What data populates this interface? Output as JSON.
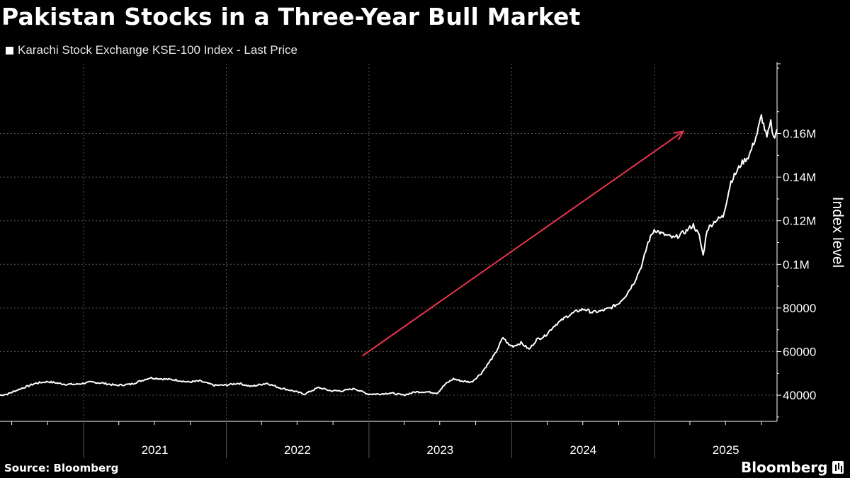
{
  "header": {
    "title": "Pakistan Stocks in a Three-Year Bull Market"
  },
  "footer": {
    "source": "Source: Bloomberg",
    "brand": "Bloomberg"
  },
  "colors": {
    "background": "#000000",
    "series": "#ffffff",
    "arrow": "#e8334a",
    "grid": "#555555"
  },
  "chart_data": {
    "type": "line",
    "ylabel": "Index level",
    "yaxis_side": "right",
    "grid": true,
    "legend_position": "top-left",
    "xlim": [
      "2020-06-01",
      "2025-11-10"
    ],
    "ylim": [
      28000,
      192000
    ],
    "x_ticks": [
      "2021",
      "2022",
      "2023",
      "2024",
      "2025"
    ],
    "y_ticks": [
      {
        "value": 40000,
        "label": "40000"
      },
      {
        "value": 60000,
        "label": "60000"
      },
      {
        "value": 80000,
        "label": "80000"
      },
      {
        "value": 100000,
        "label": "0.1M"
      },
      {
        "value": 120000,
        "label": "0.12M"
      },
      {
        "value": 140000,
        "label": "0.14M"
      },
      {
        "value": 160000,
        "label": "0.16M"
      }
    ],
    "series": [
      {
        "name": "Karachi Stock Exchange KSE-100 Index - Last Price",
        "color": "#ffffff",
        "points": [
          [
            "2020-06-01",
            40000
          ],
          [
            "2020-06-20",
            40500
          ],
          [
            "2020-07-10",
            42000
          ],
          [
            "2020-08-01",
            43500
          ],
          [
            "2020-09-01",
            45500
          ],
          [
            "2020-10-01",
            46200
          ],
          [
            "2020-11-15",
            45000
          ],
          [
            "2020-12-15",
            45000
          ],
          [
            "2021-01-20",
            46000
          ],
          [
            "2021-02-20",
            45500
          ],
          [
            "2021-03-25",
            44500
          ],
          [
            "2021-05-01",
            45000
          ],
          [
            "2021-06-20",
            48000
          ],
          [
            "2021-07-20",
            47500
          ],
          [
            "2021-08-25",
            47000
          ],
          [
            "2021-09-25",
            46000
          ],
          [
            "2021-10-25",
            46500
          ],
          [
            "2021-12-01",
            44500
          ],
          [
            "2021-12-31",
            44600
          ],
          [
            "2022-02-01",
            45500
          ],
          [
            "2022-03-05",
            44000
          ],
          [
            "2022-04-15",
            45500
          ],
          [
            "2022-05-15",
            43500
          ],
          [
            "2022-06-20",
            42000
          ],
          [
            "2022-07-20",
            40500
          ],
          [
            "2022-08-25",
            43500
          ],
          [
            "2022-09-25",
            42000
          ],
          [
            "2022-10-25",
            42000
          ],
          [
            "2022-11-25",
            43000
          ],
          [
            "2022-12-30",
            40500
          ],
          [
            "2023-01-25",
            40500
          ],
          [
            "2023-02-25",
            41000
          ],
          [
            "2023-03-30",
            40000
          ],
          [
            "2023-04-30",
            41500
          ],
          [
            "2023-05-30",
            41500
          ],
          [
            "2023-06-25",
            41000
          ],
          [
            "2023-07-15",
            45000
          ],
          [
            "2023-08-05",
            47500
          ],
          [
            "2023-08-25",
            46500
          ],
          [
            "2023-09-20",
            46000
          ],
          [
            "2023-10-15",
            50000
          ],
          [
            "2023-10-31",
            54000
          ],
          [
            "2023-11-20",
            59000
          ],
          [
            "2023-12-10",
            66500
          ],
          [
            "2023-12-25",
            63000
          ],
          [
            "2024-01-05",
            62500
          ],
          [
            "2024-01-25",
            64000
          ],
          [
            "2024-02-15",
            61000
          ],
          [
            "2024-03-05",
            65500
          ],
          [
            "2024-03-25",
            67000
          ],
          [
            "2024-04-20",
            72000
          ],
          [
            "2024-05-20",
            76000
          ],
          [
            "2024-06-15",
            78500
          ],
          [
            "2024-07-05",
            79500
          ],
          [
            "2024-07-25",
            78000
          ],
          [
            "2024-08-15",
            78500
          ],
          [
            "2024-09-10",
            80000
          ],
          [
            "2024-09-30",
            82000
          ],
          [
            "2024-10-20",
            86000
          ],
          [
            "2024-11-10",
            92000
          ],
          [
            "2024-11-30",
            100000
          ],
          [
            "2024-12-15",
            110000
          ],
          [
            "2024-12-31",
            116000
          ],
          [
            "2025-01-20",
            114000
          ],
          [
            "2025-02-20",
            112000
          ],
          [
            "2025-03-20",
            115000
          ],
          [
            "2025-04-10",
            118000
          ],
          [
            "2025-04-25",
            113000
          ],
          [
            "2025-05-05",
            104000
          ],
          [
            "2025-05-15",
            116000
          ],
          [
            "2025-06-05",
            120000
          ],
          [
            "2025-06-25",
            122000
          ],
          [
            "2025-07-15",
            138000
          ],
          [
            "2025-08-10",
            146000
          ],
          [
            "2025-08-31",
            150000
          ],
          [
            "2025-09-20",
            160000
          ],
          [
            "2025-10-01",
            168000
          ],
          [
            "2025-10-15",
            158000
          ],
          [
            "2025-10-25",
            165000
          ],
          [
            "2025-11-01",
            158000
          ],
          [
            "2025-11-10",
            162000
          ]
        ]
      }
    ],
    "annotation": {
      "type": "arrow",
      "from": [
        "2022-12-15",
        58000
      ],
      "to": [
        "2025-03-15",
        161000
      ],
      "color": "#e8334a"
    }
  }
}
